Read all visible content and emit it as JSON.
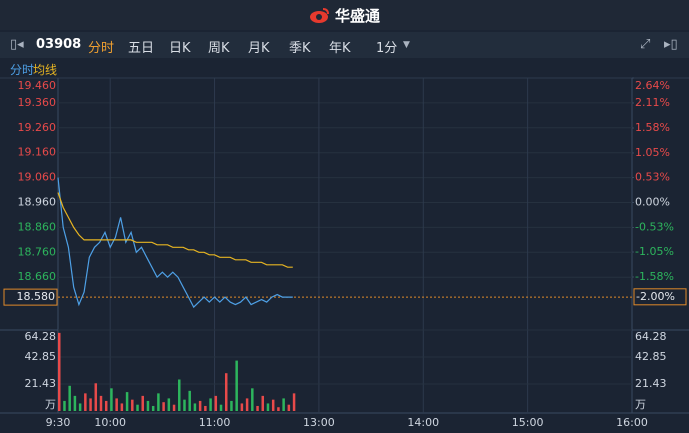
{
  "header": {
    "logo": "华盛通"
  },
  "toolbar": {
    "code": "03908",
    "tabs": [
      "分时",
      "五日",
      "日K",
      "周K",
      "月K",
      "季K",
      "年K"
    ],
    "interval": "1分"
  },
  "chart_data": {
    "type": "line",
    "x": [
      0,
      3,
      6,
      9,
      12,
      15,
      18,
      21,
      24,
      27,
      30,
      33,
      36,
      39,
      42,
      45,
      48,
      51,
      54,
      57,
      60,
      63,
      66,
      69,
      72,
      75,
      78,
      81,
      84,
      87,
      90,
      93,
      96,
      99,
      102,
      105,
      108,
      111,
      114,
      117,
      120,
      123,
      126,
      129,
      132,
      135
    ],
    "series": [
      {
        "name": "分时",
        "color": "#4ea0e6",
        "values": [
          19.06,
          18.86,
          18.78,
          18.62,
          18.55,
          18.6,
          18.74,
          18.78,
          18.8,
          18.84,
          18.78,
          18.82,
          18.9,
          18.8,
          18.84,
          18.76,
          18.78,
          18.74,
          18.7,
          18.66,
          18.68,
          18.66,
          18.68,
          18.66,
          18.62,
          18.58,
          18.54,
          18.56,
          18.58,
          18.56,
          18.58,
          18.56,
          18.58,
          18.56,
          18.55,
          18.56,
          18.58,
          18.55,
          18.56,
          18.57,
          18.56,
          18.58,
          18.59,
          18.58,
          18.58,
          18.58
        ]
      },
      {
        "name": "均线",
        "color": "#e6b422",
        "values": [
          19.0,
          18.94,
          18.9,
          18.86,
          18.83,
          18.81,
          18.81,
          18.81,
          18.81,
          18.81,
          18.81,
          18.81,
          18.81,
          18.81,
          18.81,
          18.8,
          18.8,
          18.8,
          18.8,
          18.79,
          18.79,
          18.79,
          18.78,
          18.78,
          18.78,
          18.77,
          18.77,
          18.76,
          18.76,
          18.75,
          18.75,
          18.74,
          18.74,
          18.74,
          18.73,
          18.73,
          18.73,
          18.72,
          18.72,
          18.72,
          18.71,
          18.71,
          18.71,
          18.71,
          18.7,
          18.7
        ]
      }
    ],
    "xlim": [
      0,
      330
    ],
    "xticks": [
      {
        "value": 0,
        "label": "9:30"
      },
      {
        "value": 30,
        "label": "10:00"
      },
      {
        "value": 90,
        "label": "11:00"
      },
      {
        "value": 150,
        "label": "13:00"
      },
      {
        "value": 210,
        "label": "14:00"
      },
      {
        "value": 270,
        "label": "15:00"
      },
      {
        "value": 330,
        "label": "16:00"
      }
    ],
    "ylim": [
      18.46,
      19.46
    ],
    "yticks": [
      {
        "value": 19.46,
        "label": "19.460"
      },
      {
        "value": 19.36,
        "label": "19.360"
      },
      {
        "value": 19.26,
        "label": "19.260"
      },
      {
        "value": 19.16,
        "label": "19.160"
      },
      {
        "value": 19.06,
        "label": "19.060"
      },
      {
        "value": 18.96,
        "label": "18.960"
      },
      {
        "value": 18.86,
        "label": "18.860"
      },
      {
        "value": 18.76,
        "label": "18.760"
      },
      {
        "value": 18.66,
        "label": "18.660"
      }
    ],
    "y2lim": [
      -2.64,
      2.64
    ],
    "y2ticks": [
      {
        "value": 2.64,
        "label": "2.64%"
      },
      {
        "value": 2.11,
        "label": "2.11%"
      },
      {
        "value": 1.58,
        "label": "1.58%"
      },
      {
        "value": 1.05,
        "label": "1.05%"
      },
      {
        "value": 0.53,
        "label": "0.53%"
      },
      {
        "value": 0,
        "label": "0.00%"
      },
      {
        "value": -0.53,
        "label": "-0.53%"
      },
      {
        "value": -1.05,
        "label": "-1.05%"
      },
      {
        "value": -1.58,
        "label": "-1.58%"
      }
    ],
    "last_price": {
      "value": 18.58,
      "label": "18.580"
    },
    "last_change": {
      "value": -2.0,
      "label": "-2.00%"
    },
    "volume": {
      "values": [
        62,
        8,
        20,
        12,
        6,
        14,
        10,
        22,
        12,
        8,
        18,
        10,
        6,
        15,
        9,
        5,
        12,
        8,
        4,
        14,
        7,
        10,
        5,
        25,
        9,
        16,
        6,
        8,
        4,
        10,
        12,
        5,
        30,
        8,
        40,
        6,
        10,
        18,
        4,
        12,
        6,
        9,
        3,
        10,
        5,
        14
      ],
      "up_color": "#e84a4a",
      "down_color": "#2db55d",
      "vlim": [
        0,
        64.28
      ],
      "vticks": [
        64.28,
        42.85,
        21.43
      ],
      "unit": "万"
    }
  }
}
